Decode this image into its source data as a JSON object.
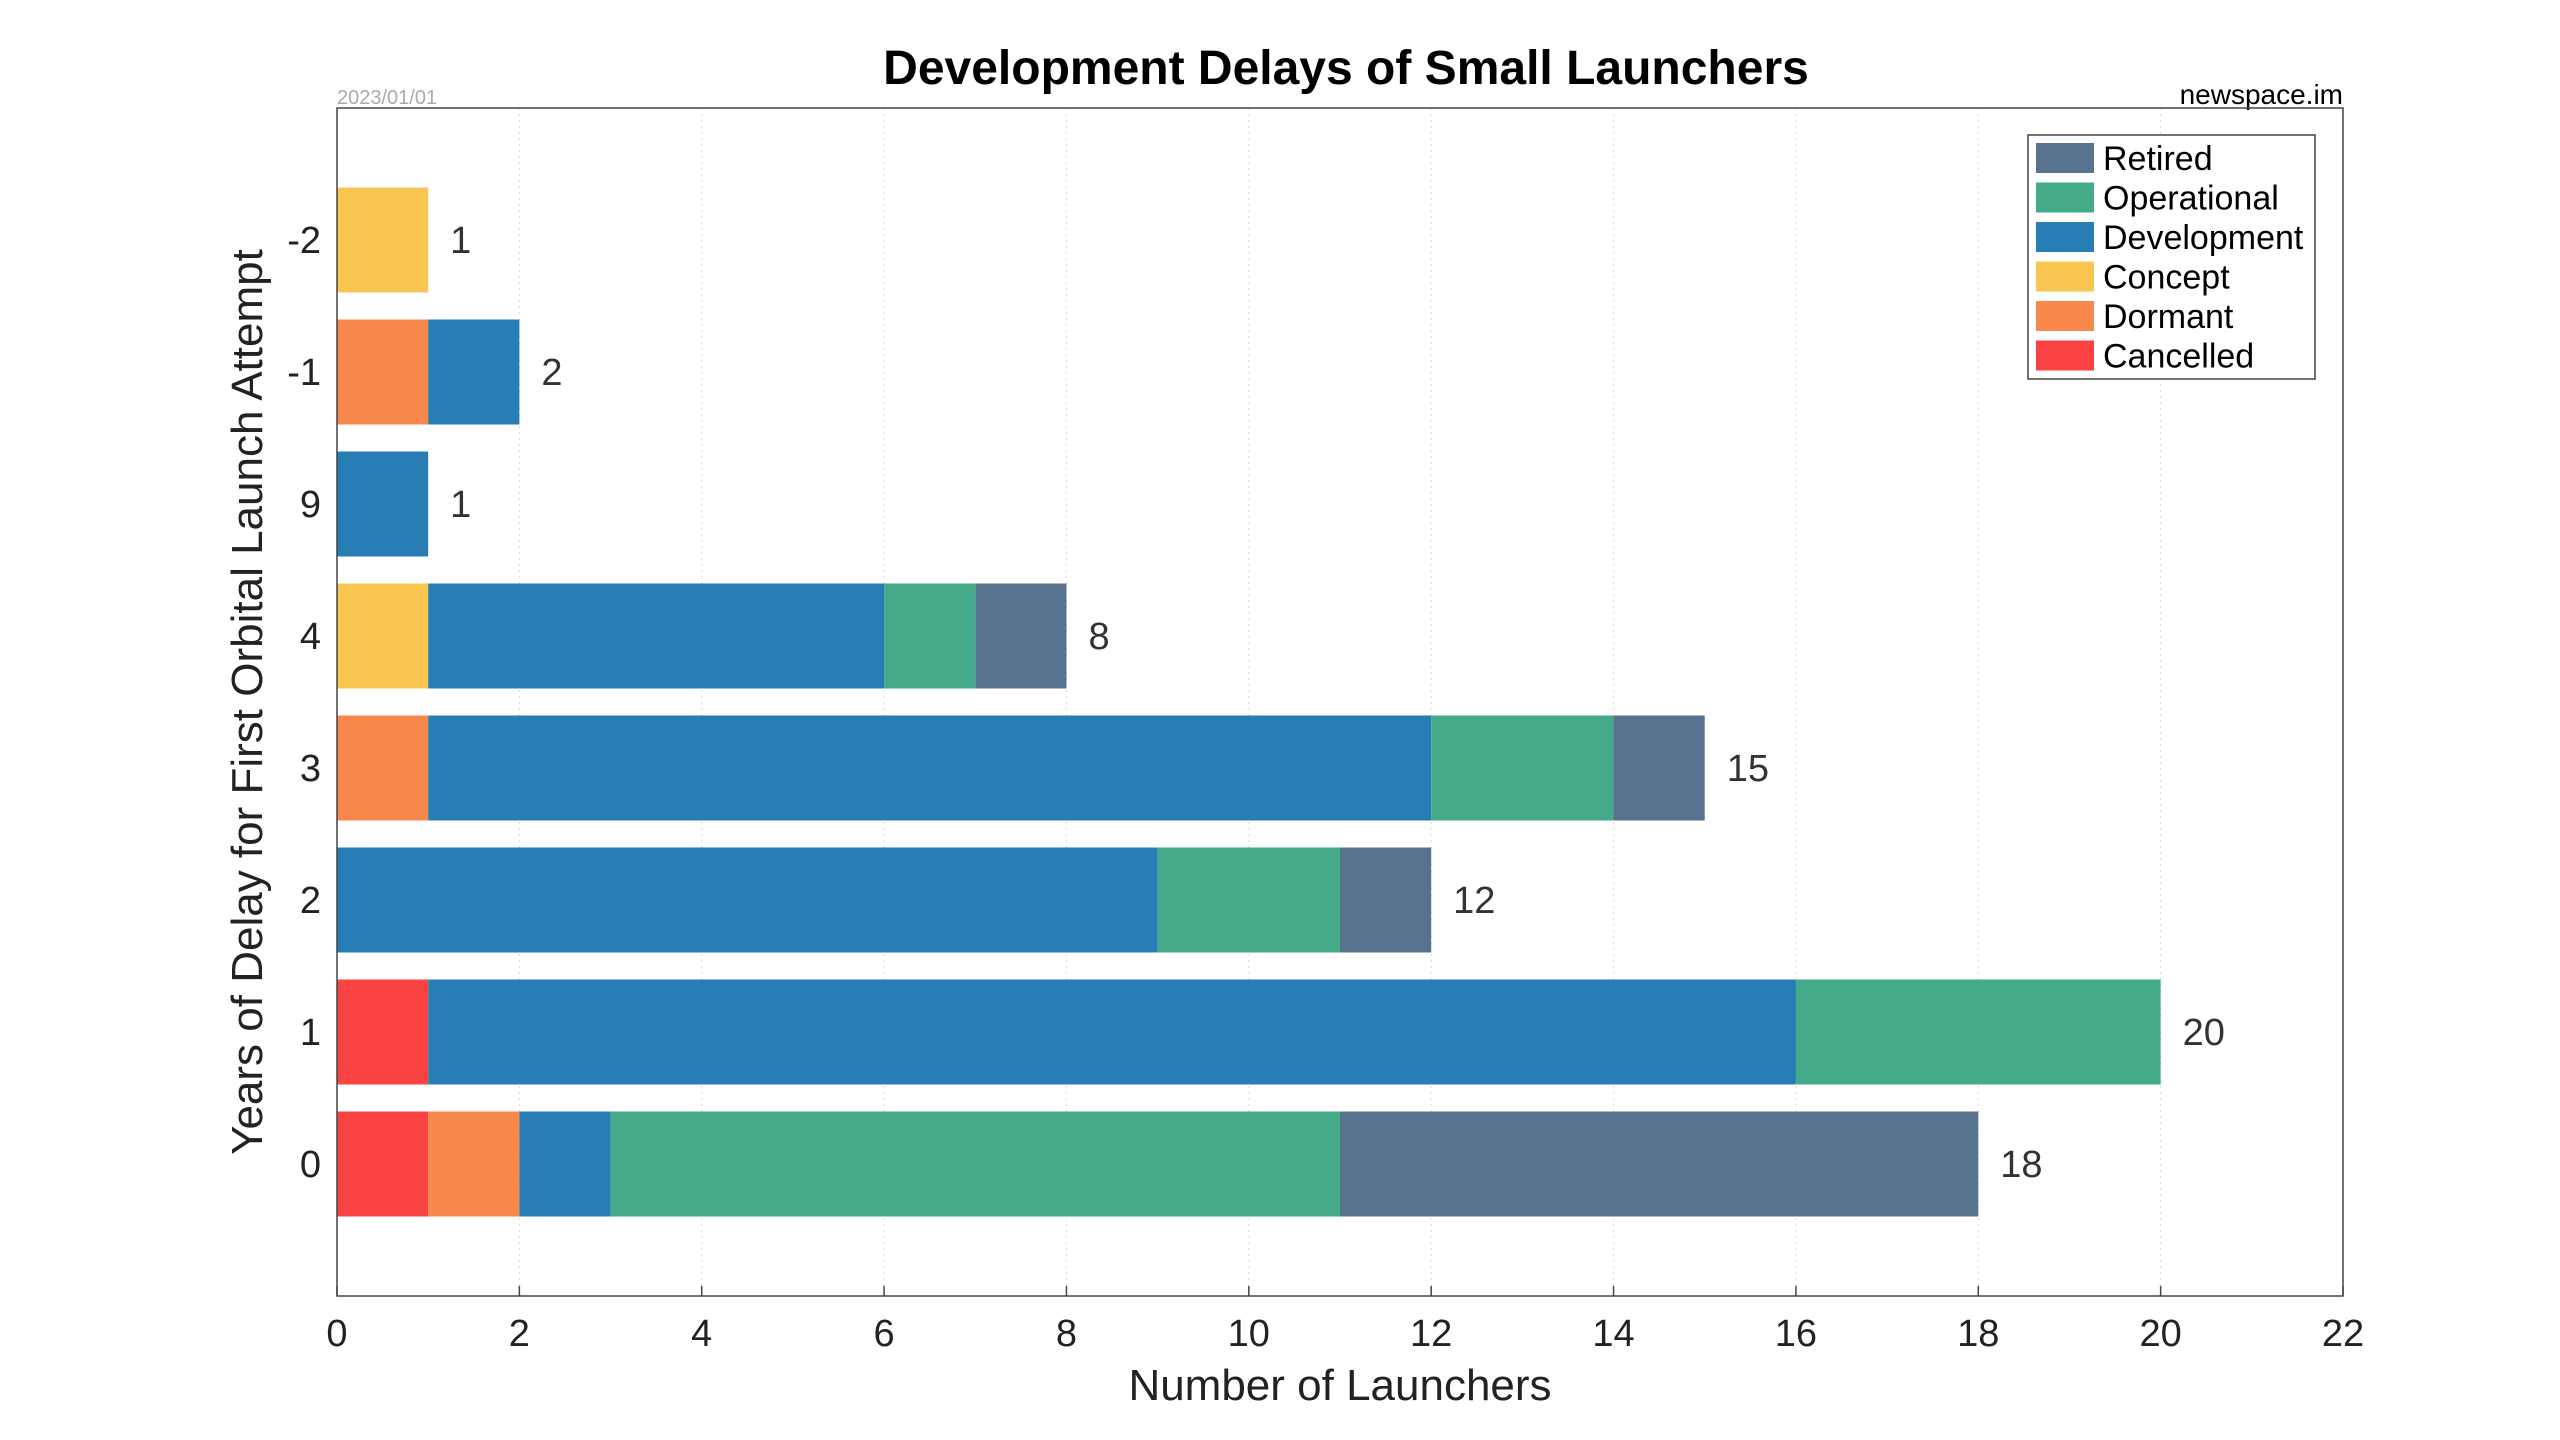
{
  "chart_data": {
    "type": "bar",
    "orientation": "horizontal",
    "stacked": true,
    "title": "Development Delays of Small Launchers",
    "date_label": "2023/01/01",
    "source_label": "newspace.im",
    "xlabel": "Number of Launchers",
    "ylabel": "Years of Delay for First Orbital Launch Attempt",
    "xlim": [
      0,
      22
    ],
    "xticks": [
      0,
      2,
      4,
      6,
      8,
      10,
      12,
      14,
      16,
      18,
      20,
      22
    ],
    "grid": "vertical-dotted",
    "legend_position": "top-right",
    "categories": [
      "-2",
      "-1",
      "9",
      "4",
      "3",
      "2",
      "1",
      "0"
    ],
    "totals": [
      1,
      2,
      1,
      8,
      15,
      12,
      20,
      18
    ],
    "series": [
      {
        "name": "Cancelled",
        "color": "#fb4344",
        "values": [
          0,
          0,
          0,
          0,
          0,
          0,
          1,
          1
        ]
      },
      {
        "name": "Dormant",
        "color": "#f8884c",
        "values": [
          0,
          1,
          0,
          0,
          1,
          0,
          0,
          1
        ]
      },
      {
        "name": "Concept",
        "color": "#f9c751",
        "values": [
          1,
          0,
          0,
          1,
          0,
          0,
          0,
          0
        ]
      },
      {
        "name": "Development",
        "color": "#287db5",
        "values": [
          0,
          1,
          1,
          5,
          11,
          9,
          15,
          1
        ]
      },
      {
        "name": "Operational",
        "color": "#45aa89",
        "values": [
          0,
          0,
          0,
          1,
          2,
          2,
          4,
          8
        ]
      },
      {
        "name": "Retired",
        "color": "#58738f",
        "values": [
          0,
          0,
          0,
          1,
          1,
          1,
          0,
          7
        ]
      }
    ],
    "legend_order": [
      "Retired",
      "Operational",
      "Development",
      "Concept",
      "Dormant",
      "Cancelled"
    ]
  }
}
